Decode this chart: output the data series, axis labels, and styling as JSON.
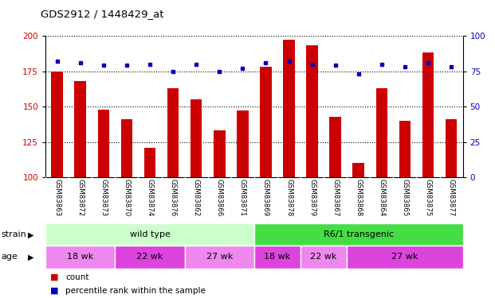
{
  "title": "GDS2912 / 1448429_at",
  "samples": [
    "GSM83863",
    "GSM83872",
    "GSM83873",
    "GSM83870",
    "GSM83874",
    "GSM83876",
    "GSM83862",
    "GSM83866",
    "GSM83871",
    "GSM83869",
    "GSM83878",
    "GSM83879",
    "GSM83867",
    "GSM83868",
    "GSM83864",
    "GSM83865",
    "GSM83875",
    "GSM83877"
  ],
  "counts": [
    175,
    168,
    148,
    141,
    121,
    163,
    155,
    133,
    147,
    178,
    197,
    193,
    143,
    110,
    163,
    140,
    188,
    141
  ],
  "percentiles": [
    82,
    81,
    79,
    79,
    80,
    75,
    80,
    75,
    77,
    81,
    82,
    80,
    79,
    73,
    80,
    78,
    81,
    78
  ],
  "ylim_left": [
    100,
    200
  ],
  "ylim_right": [
    0,
    100
  ],
  "yticks_left": [
    100,
    125,
    150,
    175,
    200
  ],
  "yticks_right": [
    0,
    25,
    50,
    75,
    100
  ],
  "bar_color": "#cc0000",
  "dot_color": "#0000bb",
  "bar_width": 0.5,
  "strain_groups": [
    {
      "label": "wild type",
      "start": 0,
      "end": 9,
      "color": "#ccffcc"
    },
    {
      "label": "R6/1 transgenic",
      "start": 9,
      "end": 18,
      "color": "#44dd44"
    }
  ],
  "age_groups": [
    {
      "label": "18 wk",
      "start": 0,
      "end": 3,
      "color": "#ee88ee"
    },
    {
      "label": "22 wk",
      "start": 3,
      "end": 6,
      "color": "#dd44dd"
    },
    {
      "label": "27 wk",
      "start": 6,
      "end": 9,
      "color": "#ee88ee"
    },
    {
      "label": "18 wk",
      "start": 9,
      "end": 11,
      "color": "#dd44dd"
    },
    {
      "label": "22 wk",
      "start": 11,
      "end": 13,
      "color": "#ee88ee"
    },
    {
      "label": "27 wk",
      "start": 13,
      "end": 18,
      "color": "#dd44dd"
    }
  ],
  "legend_count_color": "#cc0000",
  "legend_pct_color": "#0000bb",
  "axis_color_left": "#cc0000",
  "axis_color_right": "#0000bb",
  "plot_bg": "#ffffff",
  "label_bg": "#cccccc"
}
